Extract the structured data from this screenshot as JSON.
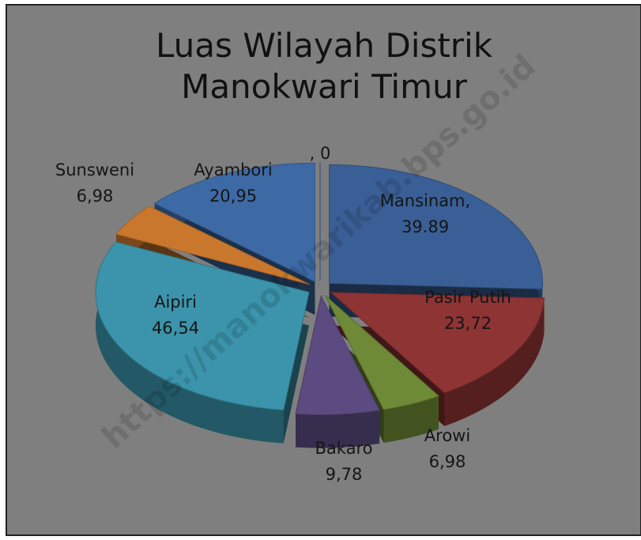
{
  "chart_data": {
    "type": "pie",
    "title": "Luas Wilayah Distrik Manokwari Timur",
    "categories": [
      null,
      "Mansinam,",
      "Pasir Putih",
      "Arowi",
      "Bakaro",
      "Aipiri",
      "Sunsweni",
      "Ayambori"
    ],
    "values": [
      0,
      39.89,
      23.72,
      6.98,
      9.78,
      46.54,
      6.98,
      20.95
    ],
    "value_labels": [
      ", 0",
      "39.89",
      "23,72",
      "6,98",
      "9,78",
      "46,54",
      "6,98",
      "20,95"
    ],
    "colors": [
      "#3a62a0",
      "#3a5f96",
      "#8e3434",
      "#6e8a36",
      "#5c4b80",
      "#3b94ab",
      "#c9772d",
      "#3d6aa5"
    ],
    "watermark": "https://manokwarikab.bps.go.id"
  }
}
